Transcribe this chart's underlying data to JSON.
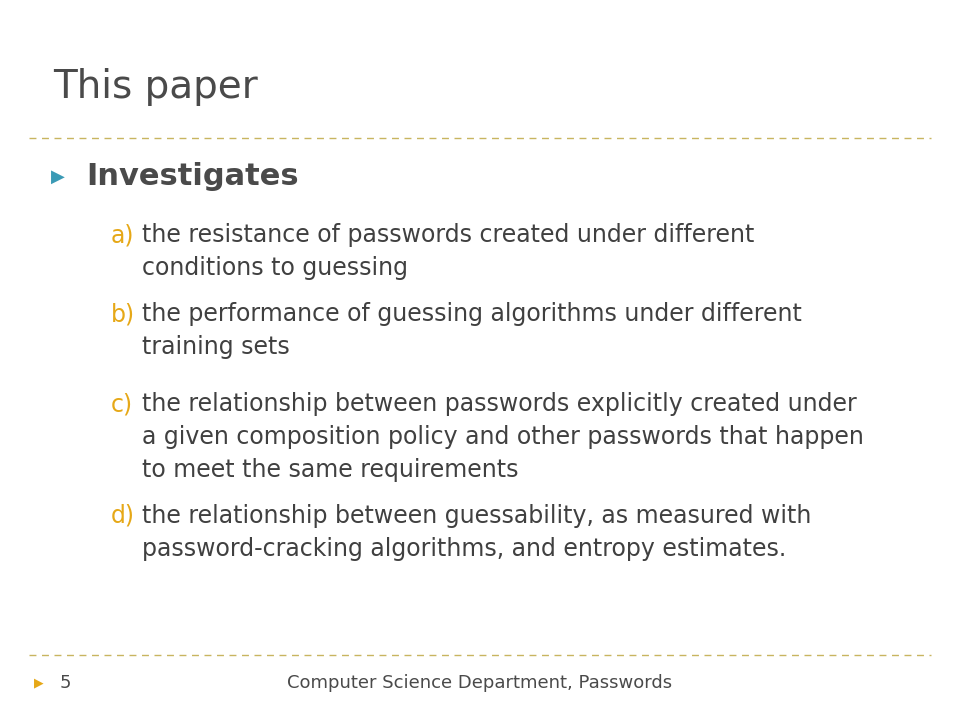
{
  "title": "This paper",
  "title_color": "#4a4a4a",
  "title_fontsize": 28,
  "background_color": "#ffffff",
  "header_line_color": "#c8b560",
  "footer_line_color": "#c8b560",
  "bullet_color": "#3a9ab5",
  "bullet_text": "Investigates",
  "bullet_fontsize": 22,
  "sub_bullet_label_color": "#e6a817",
  "sub_bullet_text_color": "#404040",
  "sub_bullet_fontsize": 17,
  "footer_text": "Computer Science Department, Passwords",
  "footer_page": "5",
  "footer_fontsize": 13,
  "sub_items": [
    {
      "label": "a)",
      "text": "the resistance of passwords created under different\nconditions to guessing"
    },
    {
      "label": "b)",
      "text": "the performance of guessing algorithms under different\ntraining sets"
    },
    {
      "label": "c)",
      "text": "the relationship between passwords explicitly created under\na given composition policy and other passwords that happen\nto meet the same requirements"
    },
    {
      "label": "d)",
      "text": "the relationship between guessability, as measured with\npassword-cracking algorithms, and entropy estimates."
    }
  ]
}
